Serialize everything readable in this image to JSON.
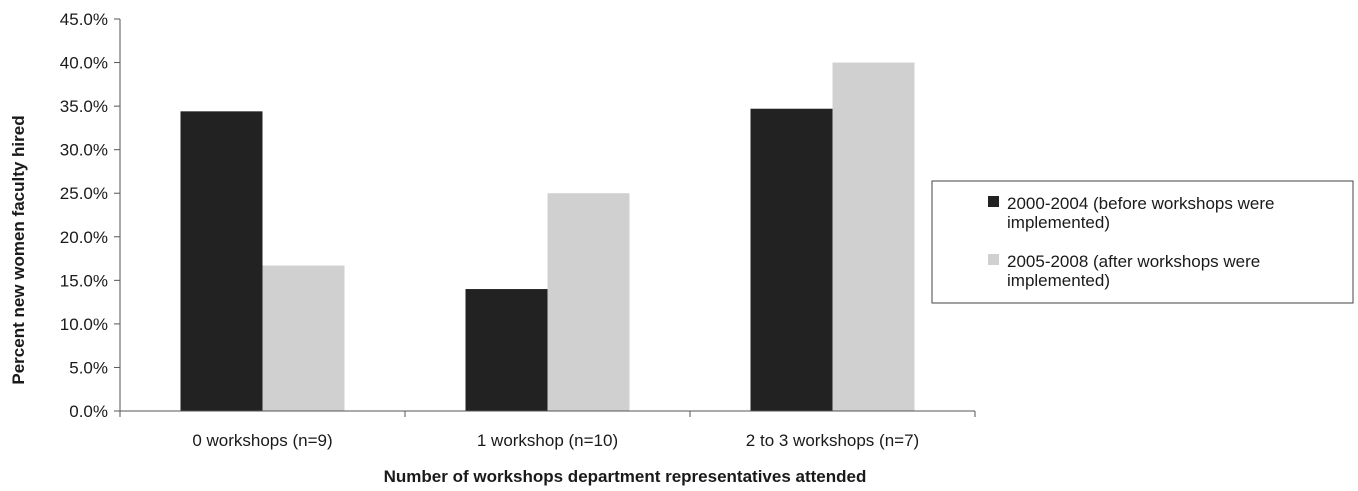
{
  "chart_data": {
    "type": "bar",
    "title": "",
    "xlabel": "Number of workshops department representatives attended",
    "ylabel": "Percent new women faculty hired",
    "categories": [
      "0 workshops (n=9)",
      "1 workshop (n=10)",
      "2 to 3 workshops (n=7)"
    ],
    "series": [
      {
        "name": "2000-2004 (before workshops were implemented)",
        "legend_lines": [
          "2000-2004 (before workshops were",
          "implemented)"
        ],
        "color": "#222222",
        "values": [
          34.4,
          14.0,
          34.7
        ]
      },
      {
        "name": "2005-2008 (after workshops were implemented)",
        "legend_lines": [
          "2005-2008 (after workshops were",
          "implemented)"
        ],
        "color": "#d0d0d0",
        "values": [
          16.7,
          25.0,
          40.0
        ]
      }
    ],
    "ylim": [
      0,
      45
    ],
    "yticks": [
      0,
      5,
      10,
      15,
      20,
      25,
      30,
      35,
      40,
      45
    ],
    "ytick_labels": [
      "0.0%",
      "5.0%",
      "10.0%",
      "15.0%",
      "20.0%",
      "25.0%",
      "30.0%",
      "35.0%",
      "40.0%",
      "45.0%"
    ],
    "grid": false,
    "legend_position": "right"
  }
}
